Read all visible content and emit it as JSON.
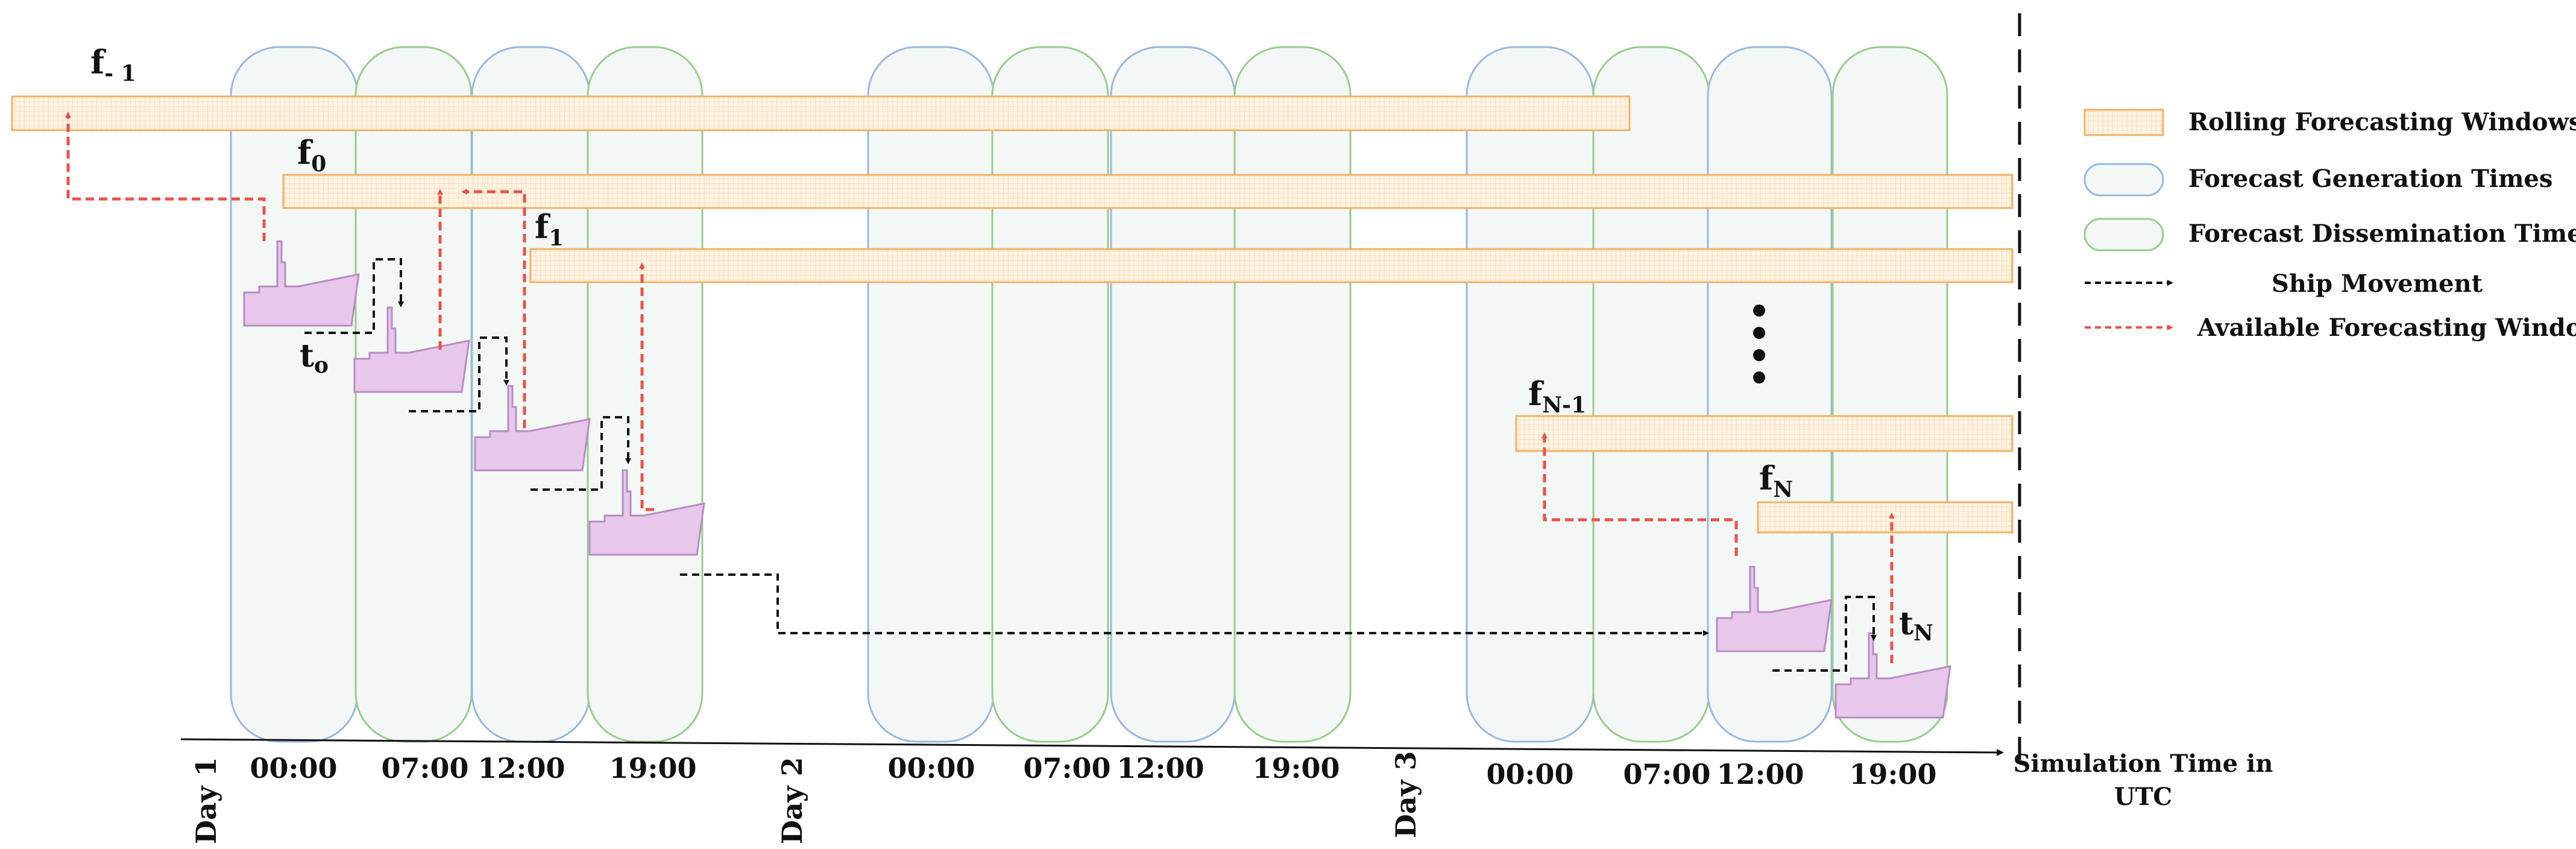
{
  "colors": {
    "window_fill": "#fff3e3",
    "window_stroke": "#f2b266",
    "generation_stroke": "#9ab8dc",
    "dissemination_stroke": "#98cc8c",
    "pill_fill": "#f3f8f6",
    "ship_movement": "#111111",
    "available_window": "#e8534a",
    "ship_fill": "#e7c7ea",
    "ship_stroke": "#b88cc4"
  },
  "legend": {
    "rolling_windows": "Rolling Forecasting Windows",
    "generation_times": "Forecast Generation Times",
    "dissemination_times": "Forecast Dissemination Times",
    "ship_movement": "Ship Movement",
    "available_window": "Available Forecasting Window"
  },
  "axis": {
    "label_line1": "Simulation Time in",
    "label_line2": "UTC"
  },
  "days": [
    {
      "label": "Day 1",
      "times": [
        "00:00",
        "07:00",
        "12:00",
        "19:00"
      ]
    },
    {
      "label": "Day 2",
      "times": [
        "00:00",
        "07:00",
        "12:00",
        "19:00"
      ]
    },
    {
      "label": "Day 3",
      "times": [
        "00:00",
        "07:00",
        "12:00",
        "19:00"
      ]
    }
  ],
  "forecast_labels": {
    "f_minus1": {
      "main": "f",
      "sub": "- 1"
    },
    "f0": {
      "main": "f",
      "sub": "0"
    },
    "f1": {
      "main": "f",
      "sub": "1"
    },
    "fN_minus1": {
      "main": "f",
      "sub": "N-1"
    },
    "fN": {
      "main": "f",
      "sub": "N"
    }
  },
  "time_labels": {
    "t0": {
      "main": "t",
      "sub": "o"
    },
    "tN": {
      "main": "t",
      "sub": "N"
    }
  },
  "ellipsis_icon": "vertical-dots-icon"
}
